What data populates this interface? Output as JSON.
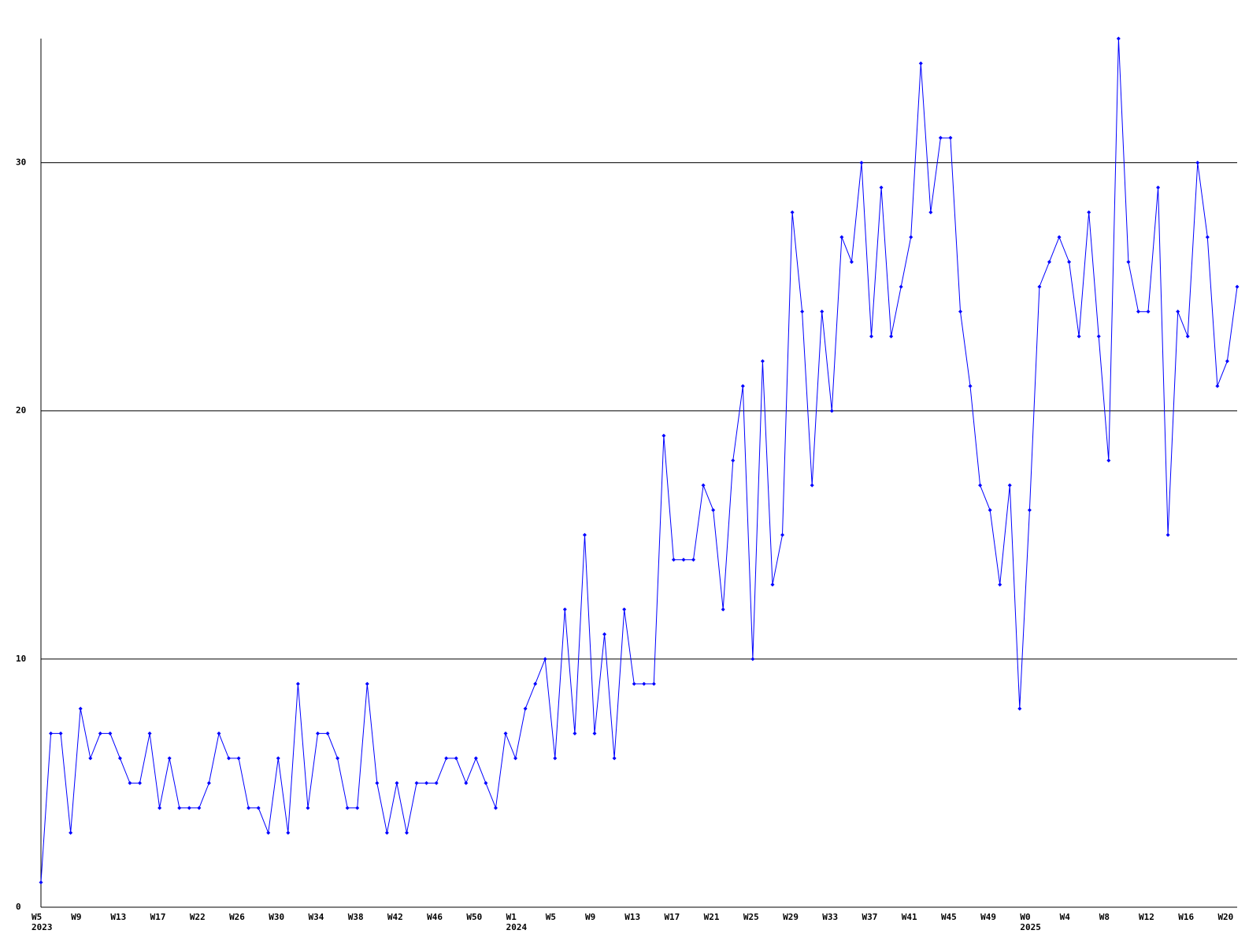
{
  "chart_data": {
    "type": "line",
    "color": "#0000ff",
    "grid": true,
    "ylim": [
      0,
      35
    ],
    "yticks": [
      0,
      10,
      20,
      30
    ],
    "categories": [
      "W5\n2023",
      null,
      null,
      null,
      "W9",
      null,
      null,
      null,
      "W13",
      null,
      null,
      null,
      "W17",
      null,
      null,
      null,
      "W22",
      null,
      null,
      null,
      "W26",
      null,
      null,
      null,
      "W30",
      null,
      null,
      null,
      "W34",
      null,
      null,
      null,
      "W38",
      null,
      null,
      null,
      "W42",
      null,
      null,
      null,
      "W46",
      null,
      null,
      null,
      "W50",
      null,
      null,
      null,
      "W1\n2024",
      null,
      null,
      null,
      "W5",
      null,
      null,
      null,
      "W9",
      null,
      null,
      null,
      "W13",
      null,
      null,
      null,
      "W17",
      null,
      null,
      null,
      "W21",
      null,
      null,
      null,
      "W25",
      null,
      null,
      null,
      "W29",
      null,
      null,
      null,
      "W33",
      null,
      null,
      null,
      "W37",
      null,
      null,
      null,
      "W41",
      null,
      null,
      null,
      "W45",
      null,
      null,
      null,
      "W49",
      null,
      null,
      null,
      "W0\n2025",
      null,
      null,
      null,
      "W4",
      null,
      null,
      null,
      "W8",
      null,
      null,
      null,
      "W12",
      null,
      null,
      null,
      "W16",
      null,
      null,
      null,
      "W20",
      null
    ],
    "values": [
      1,
      7,
      7,
      3,
      8,
      6,
      7,
      7,
      6,
      5,
      5,
      7,
      4,
      6,
      4,
      4,
      4,
      5,
      7,
      6,
      6,
      4,
      4,
      3,
      6,
      3,
      9,
      4,
      7,
      7,
      6,
      4,
      4,
      9,
      5,
      3,
      5,
      3,
      5,
      5,
      5,
      6,
      6,
      5,
      6,
      5,
      4,
      7,
      6,
      8,
      9,
      10,
      6,
      12,
      7,
      15,
      7,
      11,
      6,
      12,
      9,
      9,
      9,
      19,
      14,
      14,
      14,
      17,
      16,
      12,
      18,
      21,
      10,
      22,
      13,
      15,
      28,
      24,
      17,
      24,
      20,
      27,
      26,
      30,
      23,
      29,
      23,
      25,
      27,
      34,
      28,
      31,
      31,
      24,
      21,
      17,
      16,
      13,
      17,
      8,
      16,
      25,
      26,
      27,
      26,
      23,
      28,
      23,
      18,
      35,
      26,
      24,
      24,
      29,
      15,
      24,
      23,
      30,
      27,
      21,
      22,
      25
    ]
  }
}
